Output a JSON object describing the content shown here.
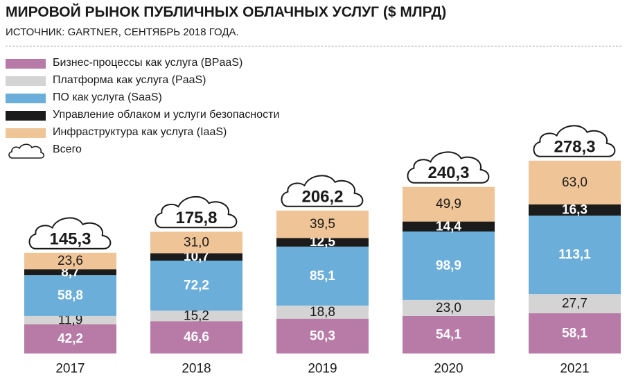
{
  "header": {
    "title": "МИРОВОЙ РЫНОК ПУБЛИЧНЫХ ОБЛАЧНЫХ УСЛУГ ($ МЛРД)",
    "subtitle": "ИСТОЧНИК: GARTNER, СЕНТЯБРЬ 2018 ГОДА."
  },
  "legend": {
    "items": [
      {
        "label": "Бизнес-процессы как услуга (BPaaS)",
        "color": "#b87aa6"
      },
      {
        "label": "Платформа как услуга (PaaS)",
        "color": "#d4d4d4"
      },
      {
        "label": "ПО как услуга (SaaS)",
        "color": "#6aaed9"
      },
      {
        "label": "Управление облаком и услуги безопасности",
        "color": "#1b1b1b"
      },
      {
        "label": "Инфраструктура как услуга (IaaS)",
        "color": "#efc496"
      }
    ],
    "total_label": "Всего",
    "total_icon": "cloud-icon"
  },
  "chart_data": {
    "type": "bar",
    "stacked": true,
    "categories": [
      "2017",
      "2018",
      "2019",
      "2020",
      "2021"
    ],
    "series": [
      {
        "name": "Бизнес-процессы как услуга (BPaaS)",
        "color": "#b87aa6",
        "label_color": "#ffffff",
        "labels": [
          "42,2",
          "46,6",
          "50,3",
          "54,1",
          "58,1"
        ],
        "values": [
          42.2,
          46.6,
          50.3,
          54.1,
          58.1
        ]
      },
      {
        "name": "Платформа как услуга (PaaS)",
        "color": "#d4d4d4",
        "label_color": "#1a1a1a",
        "labels": [
          "11,9",
          "15,2",
          "18,8",
          "23,0",
          "27,7"
        ],
        "values": [
          11.9,
          15.2,
          18.8,
          23.0,
          27.7
        ]
      },
      {
        "name": "ПО как услуга (SaaS)",
        "color": "#6aaed9",
        "label_color": "#ffffff",
        "labels": [
          "58,8",
          "72,2",
          "85,1",
          "98,9",
          "113,1"
        ],
        "values": [
          58.8,
          72.2,
          85.1,
          98.9,
          113.1
        ]
      },
      {
        "name": "Управление облаком и услуги безопасности",
        "color": "#1b1b1b",
        "label_color": "#ffffff",
        "labels": [
          "8,7",
          "10,7",
          "12,5",
          "14,4",
          "16,3"
        ],
        "values": [
          8.7,
          10.7,
          12.5,
          14.4,
          16.3
        ]
      },
      {
        "name": "Инфраструктура как услуга (IaaS)",
        "color": "#efc496",
        "label_color": "#1a1a1a",
        "labels": [
          "23,6",
          "31,0",
          "39,5",
          "49,9",
          "63,0"
        ],
        "values": [
          23.6,
          31.0,
          39.5,
          49.9,
          63.0
        ]
      }
    ],
    "totals": {
      "labels": [
        "145,3",
        "175,8",
        "206,2",
        "240,3",
        "278,3"
      ],
      "values": [
        145.3,
        175.8,
        206.2,
        240.3,
        278.3
      ]
    },
    "title": "МИРОВОЙ РЫНОК ПУБЛИЧНЫХ ОБЛАЧНЫХ УСЛУГ ($ МЛРД)",
    "xlabel": "",
    "ylabel": "",
    "ylim": [
      0,
      280
    ],
    "grid": false,
    "legend_position": "top-left"
  }
}
